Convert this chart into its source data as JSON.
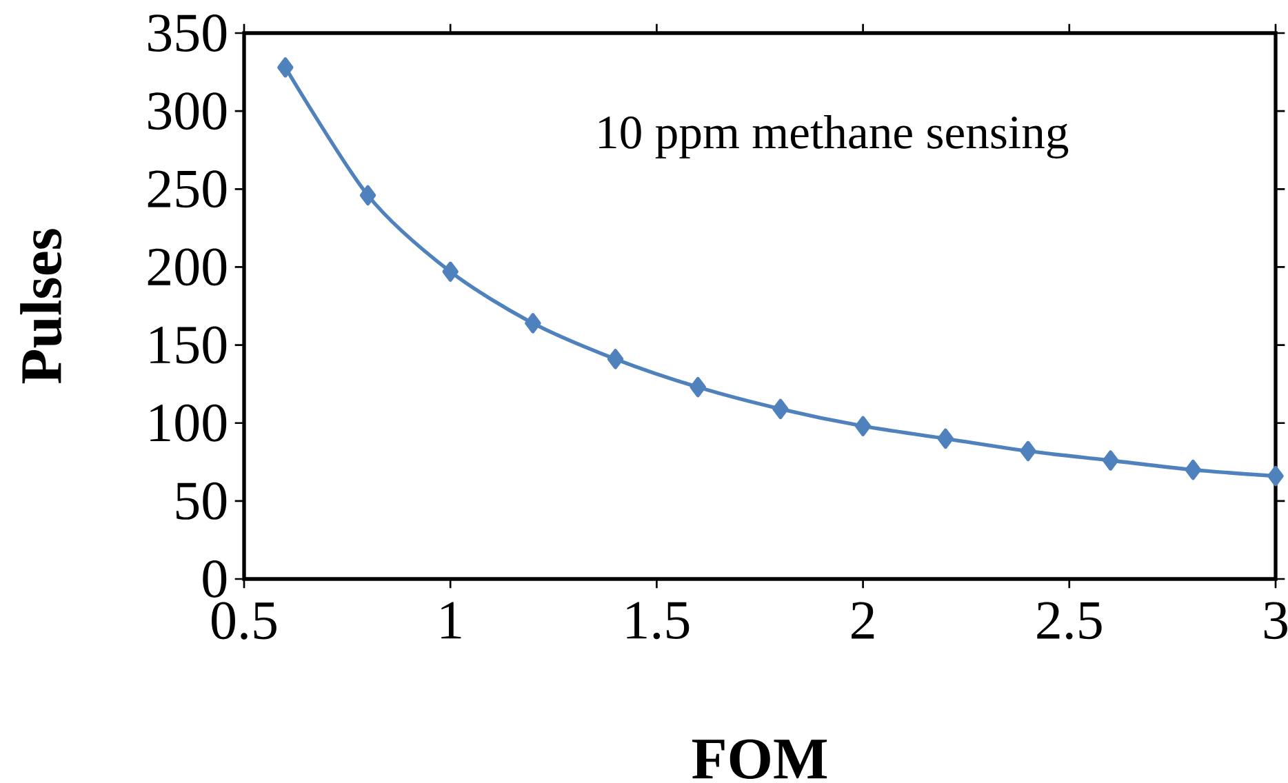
{
  "chart_data": {
    "type": "line",
    "xlabel": "FOM",
    "ylabel": "Pulses",
    "annotations": [
      "10 ppm methane sensing"
    ],
    "x": [
      0.6,
      0.8,
      1.0,
      1.2,
      1.4,
      1.6,
      1.8,
      2.0,
      2.2,
      2.4,
      2.6,
      2.8,
      3.0
    ],
    "values": [
      328,
      246,
      197,
      164,
      141,
      123,
      109,
      98,
      90,
      82,
      76,
      70,
      66
    ],
    "color": "#4f81bd",
    "marker": "diamond",
    "line_style": "solid",
    "xlim": [
      0.5,
      3
    ],
    "ylim": [
      0,
      350
    ],
    "xticks": [
      0.5,
      1,
      1.5,
      2,
      2.5,
      3
    ],
    "yticks": [
      0,
      50,
      100,
      150,
      200,
      250,
      300,
      350
    ],
    "grid": false
  }
}
